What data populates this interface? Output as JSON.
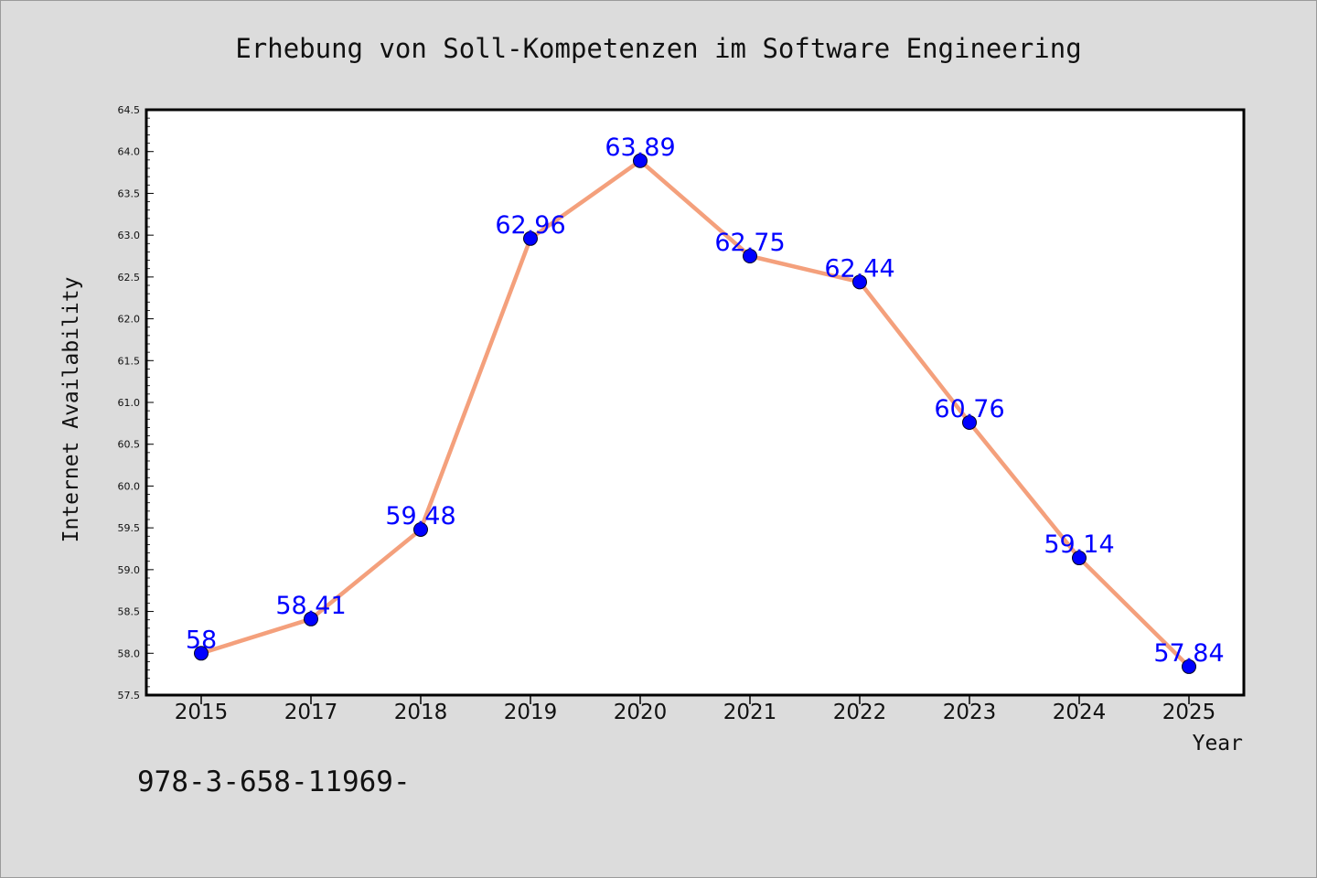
{
  "chart_data": {
    "type": "line",
    "title": "Erhebung von Soll-Kompetenzen im Software Engineering",
    "xlabel": "Year",
    "ylabel": "Internet Availability",
    "categories": [
      "2015",
      "2017",
      "2018",
      "2019",
      "2020",
      "2021",
      "2022",
      "2023",
      "2024",
      "2025"
    ],
    "series": [
      {
        "values": [
          58,
          58.41,
          59.48,
          62.96,
          63.89,
          62.75,
          62.44,
          60.76,
          59.14,
          57.84
        ],
        "labels": [
          "58",
          "58.41",
          "59.48",
          "62.96",
          "63.89",
          "62.75",
          "62.44",
          "60.76",
          "59.14",
          "57.84"
        ]
      }
    ],
    "ylim": [
      57.5,
      64.5
    ],
    "yticks": [
      "57.5",
      "58.0",
      "58.5",
      "59.0",
      "59.5",
      "60.0",
      "60.5",
      "61.0",
      "61.5",
      "62.0",
      "62.5",
      "63.0",
      "63.5",
      "64.0",
      "64.5"
    ],
    "grid": false,
    "colors": {
      "line": "#f4a07c",
      "marker": "#0000ff",
      "label": "#0000ff",
      "background": "#dcdcdc",
      "plot_background": "#ffffff"
    }
  },
  "footer_text": "978-3-658-11969-"
}
